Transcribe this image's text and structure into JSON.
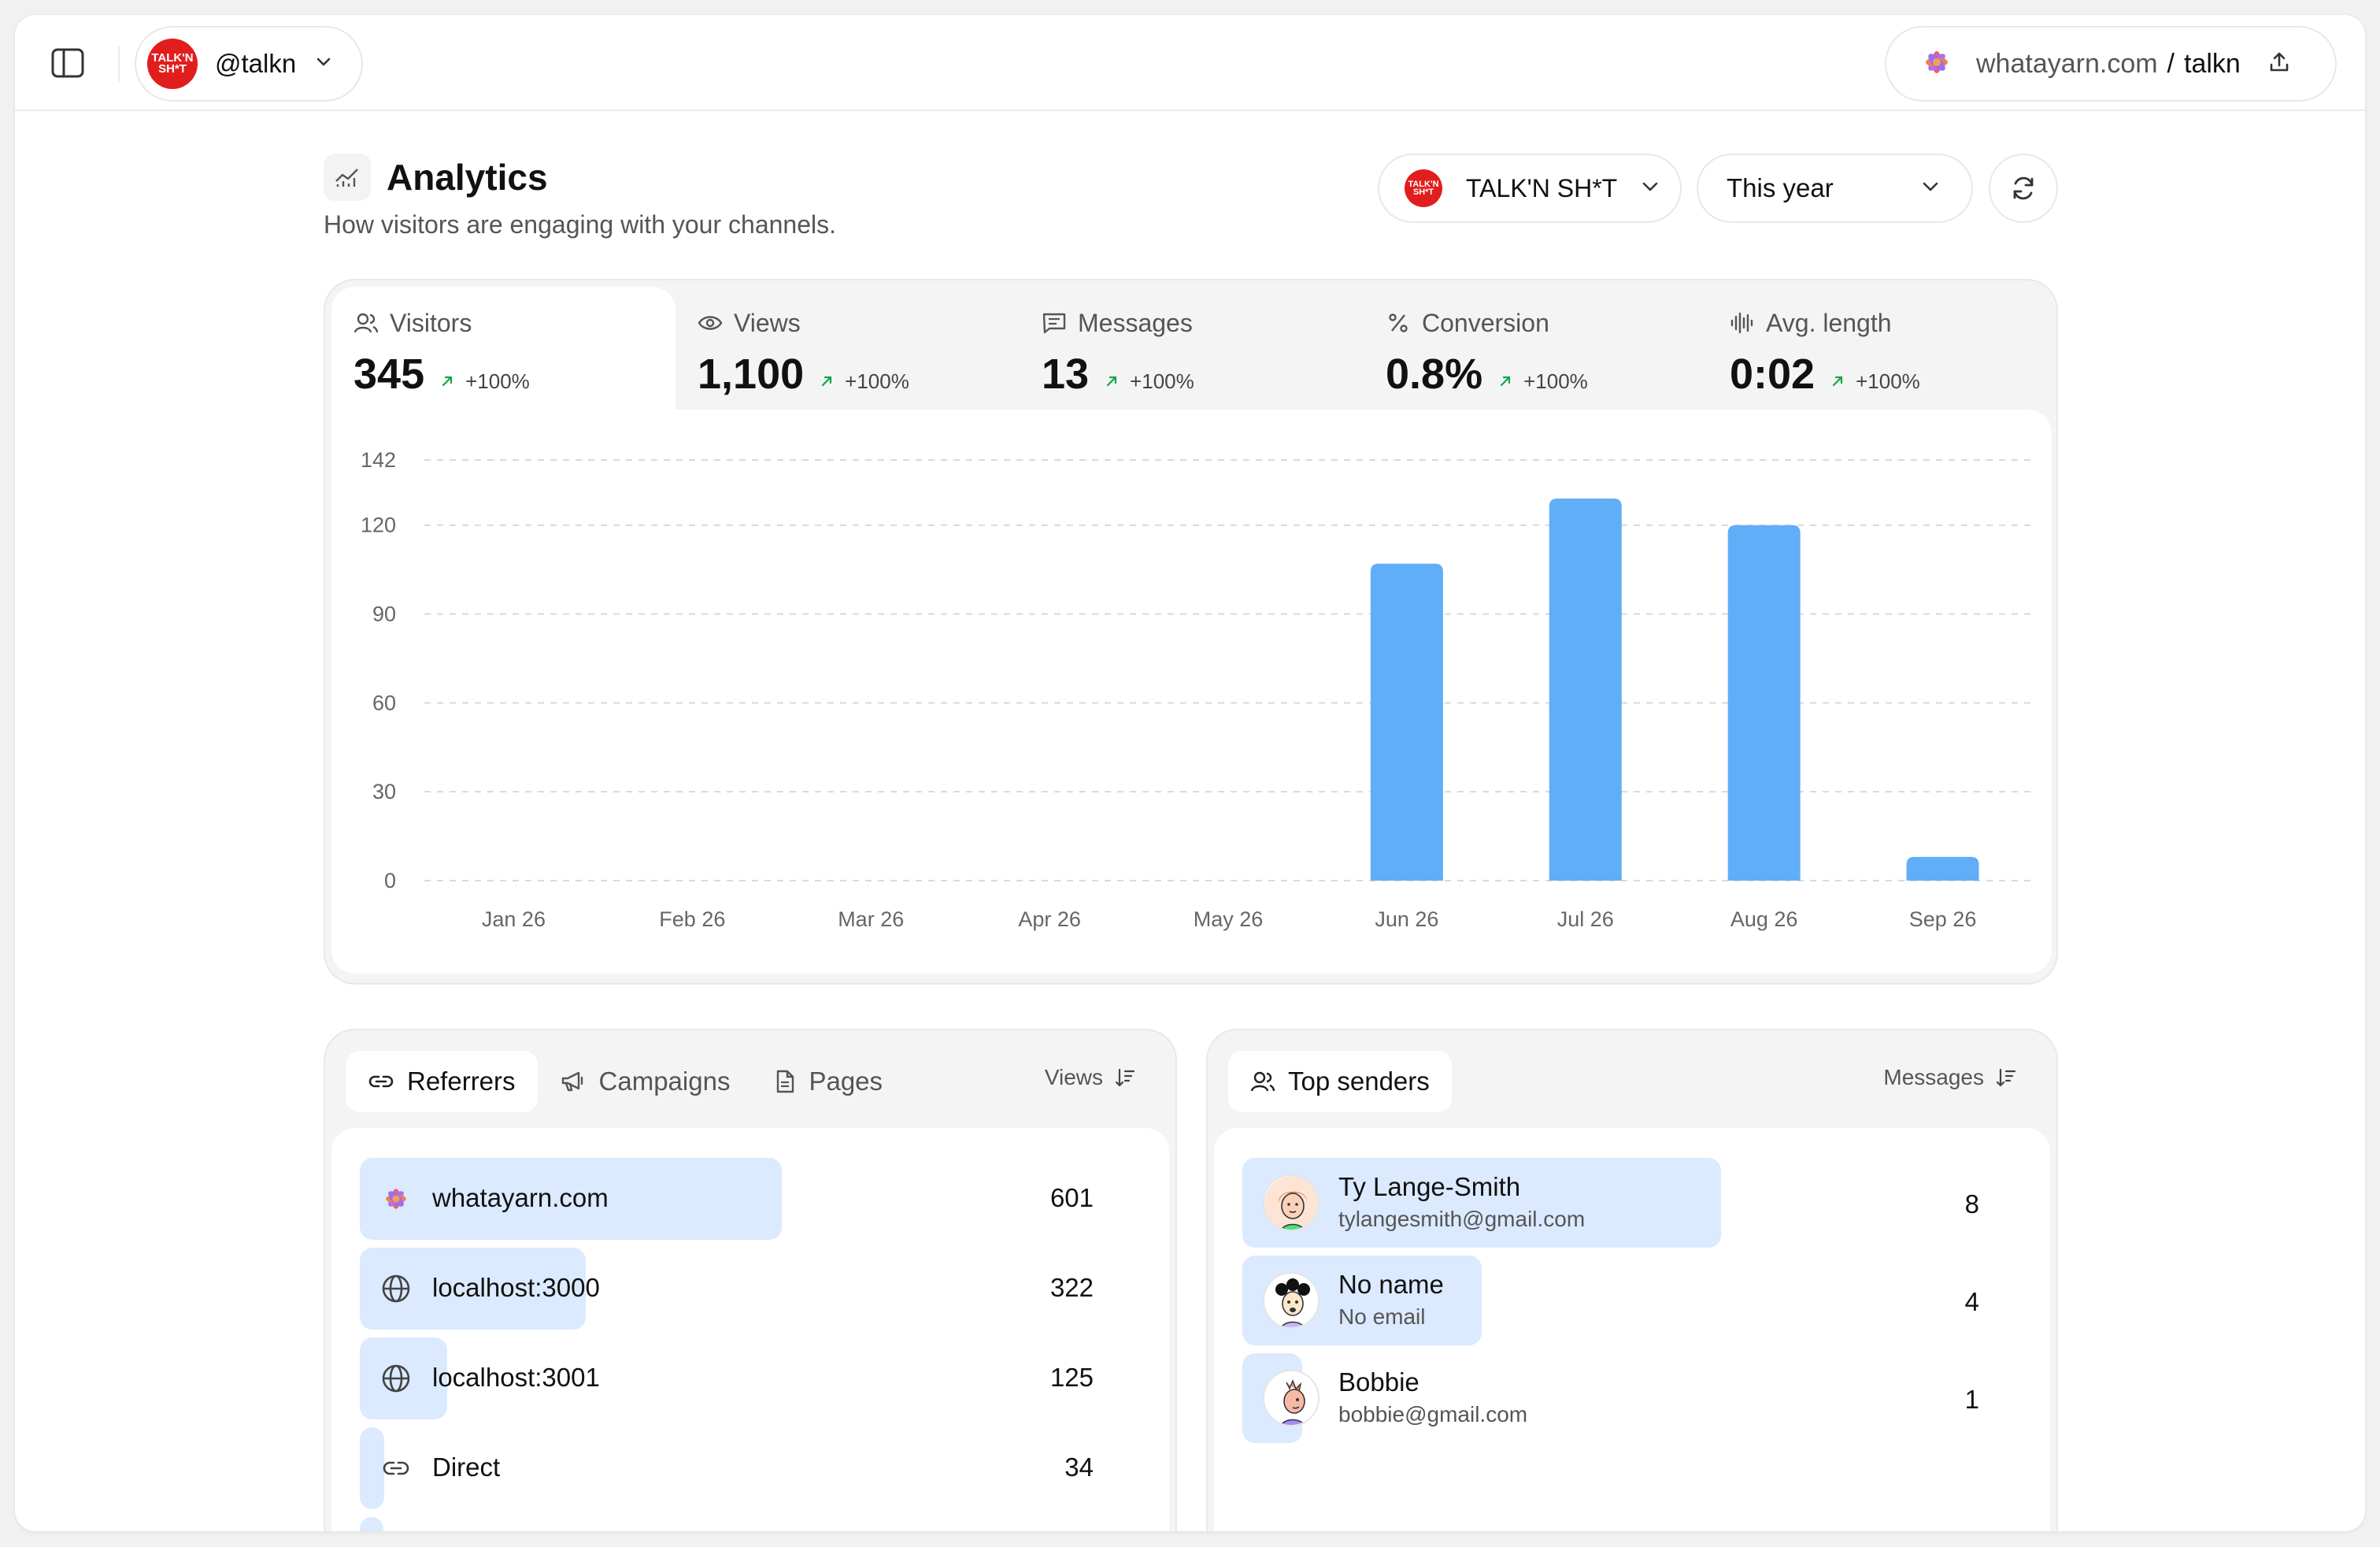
{
  "topbar": {
    "account_handle": "@talkn",
    "account_logo_text": "TALK'N SH*T",
    "site_domain": "whatayarn.com",
    "site_separator": "/",
    "site_slug": "talkn"
  },
  "header": {
    "title": "Analytics",
    "subtitle": "How visitors are engaging with your channels.",
    "channel_label": "TALK'N SH*T",
    "range_label": "This year"
  },
  "stats": [
    {
      "label": "Visitors",
      "value": "345",
      "delta": "+100%",
      "icon": "users-icon"
    },
    {
      "label": "Views",
      "value": "1,100",
      "delta": "+100%",
      "icon": "eye-icon"
    },
    {
      "label": "Messages",
      "value": "13",
      "delta": "+100%",
      "icon": "message-icon"
    },
    {
      "label": "Conversion",
      "value": "0.8%",
      "delta": "+100%",
      "icon": "percent-icon"
    },
    {
      "label": "Avg. length",
      "value": "0:02",
      "delta": "+100%",
      "icon": "audio-wave-icon"
    }
  ],
  "chart_data": {
    "type": "bar",
    "categories": [
      "Jan 26",
      "Feb 26",
      "Mar 26",
      "Apr 26",
      "May 26",
      "Jun 26",
      "Jul 26",
      "Aug 26",
      "Sep 26"
    ],
    "values": [
      0,
      0,
      0,
      0,
      0,
      107,
      129,
      120,
      8
    ],
    "yticks": [
      0,
      30,
      60,
      90,
      120,
      142
    ],
    "ylim": [
      0,
      142
    ],
    "grid": true,
    "bar_color": "#60aef7"
  },
  "referrers": {
    "tabs": [
      "Referrers",
      "Campaigns",
      "Pages"
    ],
    "sort_label": "Views",
    "rows": [
      {
        "name": "whatayarn.com",
        "value": "601",
        "icon": "flower-icon",
        "fraction": 1.0
      },
      {
        "name": "localhost:3000",
        "value": "322",
        "icon": "globe-icon",
        "fraction": 0.536
      },
      {
        "name": "localhost:3001",
        "value": "125",
        "icon": "globe-icon",
        "fraction": 0.208
      },
      {
        "name": "Direct",
        "value": "34",
        "icon": "link-icon",
        "fraction": 0.057
      }
    ]
  },
  "senders": {
    "tab": "Top senders",
    "sort_label": "Messages",
    "rows": [
      {
        "name": "Ty Lange-Smith",
        "email": "tylangesmith@gmail.com",
        "value": "8",
        "fraction": 1.0
      },
      {
        "name": "No name",
        "email": "No email",
        "value": "4",
        "fraction": 0.5
      },
      {
        "name": "Bobbie",
        "email": "bobbie@gmail.com",
        "value": "1",
        "fraction": 0.125
      }
    ]
  },
  "colors": {
    "accent_bar": "#60aef7",
    "row_highlight": "#dbeafe",
    "delta_up": "#16a34a",
    "logo_red": "#e11d1d"
  }
}
